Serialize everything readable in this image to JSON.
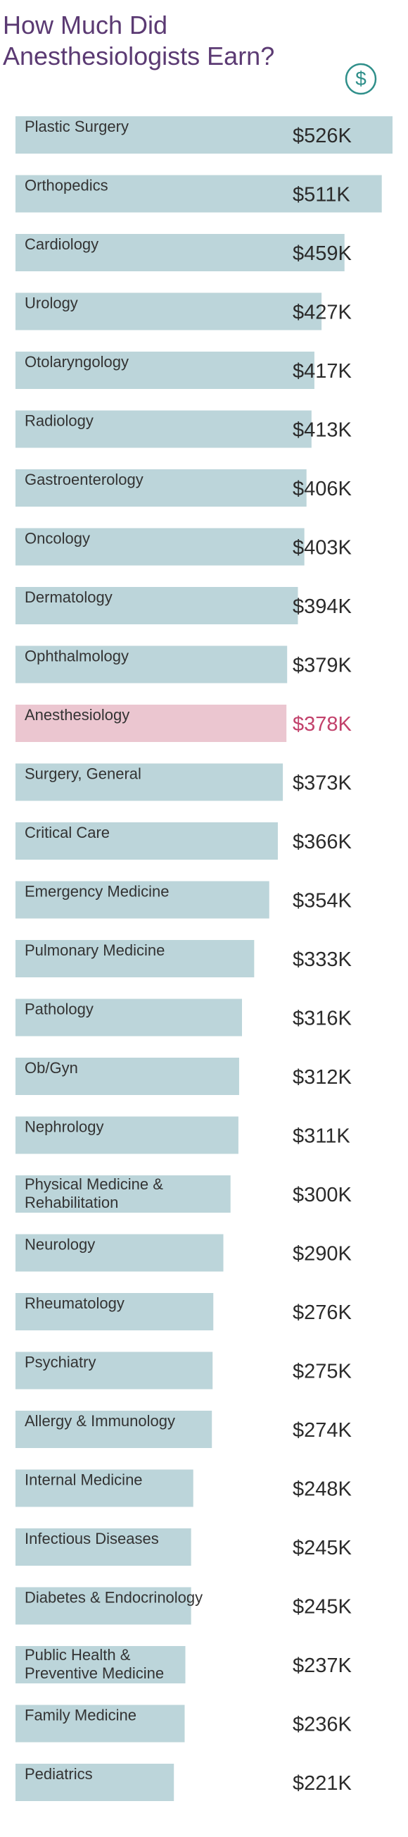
{
  "title": "How Much Did Anesthesiologists Earn?",
  "icons": {
    "header": "dollar-circle-icon"
  },
  "colors": {
    "title": "#5b3a73",
    "bar": "#bcd5da",
    "highlight_bar": "#ebc6d0",
    "highlight_value": "#c2416b",
    "label": "#333333",
    "value": "#2b2b2b",
    "icon": "#2f8f8a"
  },
  "chart_data": {
    "type": "bar",
    "orientation": "horizontal",
    "title": "How Much Did Anesthesiologists Earn?",
    "highlight": "Anesthesiology",
    "categories": [
      "Plastic Surgery",
      "Orthopedics",
      "Cardiology",
      "Urology",
      "Otolaryngology",
      "Radiology",
      "Gastroenterology",
      "Oncology",
      "Dermatology",
      "Ophthalmology",
      "Anesthesiology",
      "Surgery, General",
      "Critical Care",
      "Emergency Medicine",
      "Pulmonary Medicine",
      "Pathology",
      "Ob/Gyn",
      "Nephrology",
      "Physical Medicine & Rehabilitation",
      "Neurology",
      "Rheumatology",
      "Psychiatry",
      "Allergy & Immunology",
      "Internal Medicine",
      "Infectious Diseases",
      "Diabetes & Endocrinology",
      "Public Health & Preventive Medicine",
      "Family Medicine",
      "Pediatrics"
    ],
    "values": [
      526,
      511,
      459,
      427,
      417,
      413,
      406,
      403,
      394,
      379,
      378,
      373,
      366,
      354,
      333,
      316,
      312,
      311,
      300,
      290,
      276,
      275,
      274,
      248,
      245,
      245,
      237,
      236,
      221
    ],
    "value_labels": [
      "$526K",
      "$511K",
      "$459K",
      "$427K",
      "$417K",
      "$413K",
      "$406K",
      "$403K",
      "$394K",
      "$379K",
      "$378K",
      "$373K",
      "$366K",
      "$354K",
      "$333K",
      "$316K",
      "$312K",
      "$311K",
      "$300K",
      "$290K",
      "$276K",
      "$275K",
      "$274K",
      "$248K",
      "$245K",
      "$245K",
      "$237K",
      "$236K",
      "$221K"
    ],
    "unit": "thousand USD",
    "xlim": [
      0,
      526
    ],
    "grid": false,
    "legend": "none"
  }
}
